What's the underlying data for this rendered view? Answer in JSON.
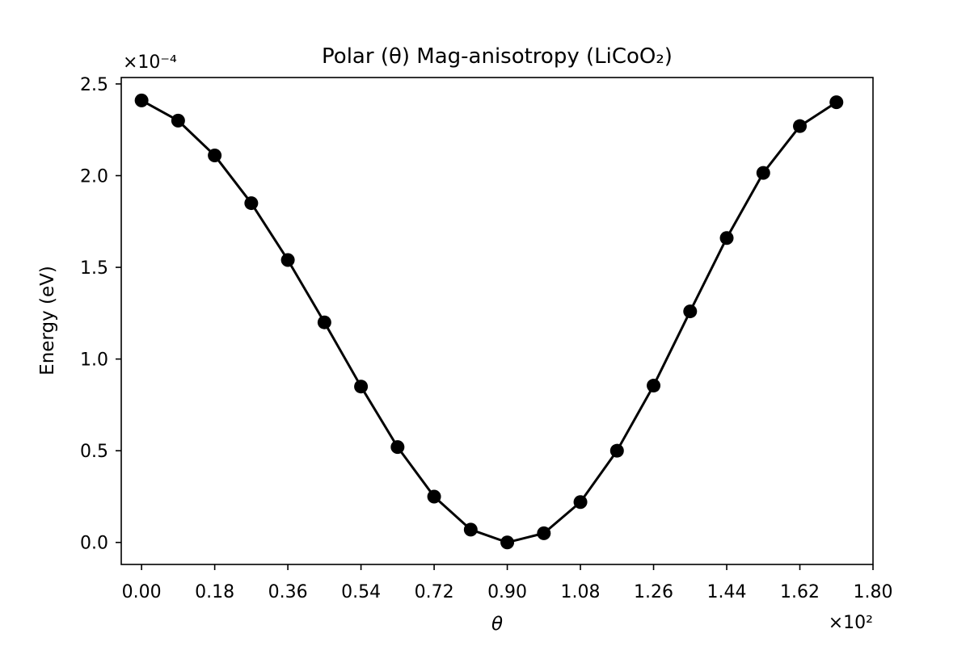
{
  "chart_data": {
    "type": "line",
    "title": "Polar (θ) Mag-anisotropy (LiCoO₂)",
    "xlabel": "θ",
    "ylabel": "Energy (eV)",
    "x_multiplier_label": "×10²",
    "y_multiplier_label": "×10⁻⁴",
    "x_scale": 100,
    "y_scale": 0.0001,
    "xlim": [
      -5,
      180
    ],
    "ylim": [
      -1.2e-05,
      0.0002535
    ],
    "xticks": [
      0,
      18,
      36,
      54,
      72,
      90,
      108,
      126,
      144,
      162,
      180
    ],
    "xtick_labels": [
      "0.00",
      "0.18",
      "0.36",
      "0.54",
      "0.72",
      "0.90",
      "1.08",
      "1.26",
      "1.44",
      "1.62",
      "1.80"
    ],
    "yticks": [
      0,
      5e-05,
      0.0001,
      0.00015,
      0.0002,
      0.00025
    ],
    "ytick_labels": [
      "0.0",
      "0.5",
      "1.0",
      "1.5",
      "2.0",
      "2.5"
    ],
    "grid": false,
    "marker": "circle",
    "color": "#000000",
    "series": [
      {
        "x": [
          0,
          9,
          18,
          27,
          36,
          45,
          54,
          63,
          72,
          81,
          90,
          99,
          108,
          117,
          126,
          135,
          144,
          153,
          162,
          171
        ],
        "values": [
          0.000241,
          0.00023,
          0.000211,
          0.000185,
          0.000154,
          0.00012,
          8.5e-05,
          5.2e-05,
          2.5e-05,
          7e-06,
          0.0,
          5e-06,
          2.2e-05,
          5e-05,
          8.55e-05,
          0.000126,
          0.000166,
          0.0002015,
          0.000227,
          0.00024
        ]
      }
    ]
  }
}
